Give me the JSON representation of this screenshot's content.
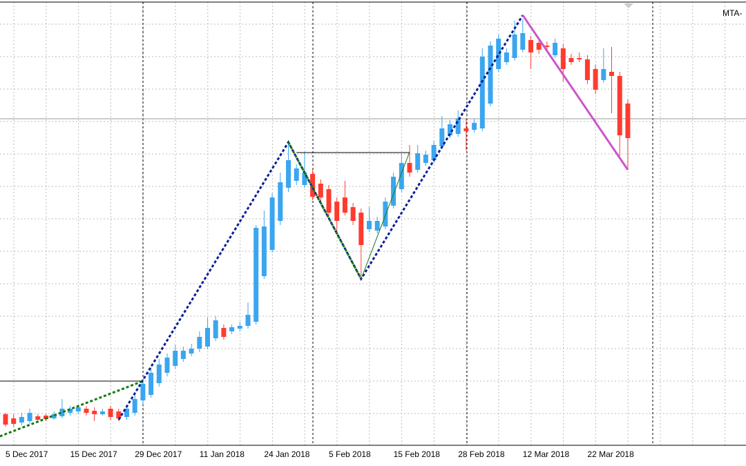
{
  "chart_data": {
    "type": "candlestick",
    "corner_label": "MTA-",
    "categories": [
      "5 Dec 2017",
      null,
      null,
      null,
      null,
      null,
      null,
      null,
      "15 Dec 2017",
      null,
      null,
      null,
      null,
      null,
      null,
      null,
      "29 Dec 2017",
      null,
      null,
      null,
      null,
      null,
      null,
      null,
      "11 Jan 2018",
      null,
      null,
      null,
      null,
      null,
      null,
      null,
      "24 Jan 2018",
      null,
      null,
      null,
      null,
      null,
      null,
      null,
      "5 Feb 2018",
      null,
      null,
      null,
      null,
      null,
      null,
      null,
      "15 Feb 2018",
      null,
      null,
      null,
      null,
      null,
      null,
      null,
      "28 Feb 2018",
      null,
      null,
      null,
      null,
      null,
      null,
      null,
      "12 Mar 2018",
      null,
      null,
      null,
      null,
      null,
      null,
      null,
      "22 Mar 2018",
      null,
      null,
      null,
      null,
      null
    ],
    "open": [
      45,
      39,
      33,
      35,
      42,
      43,
      39,
      42,
      47,
      49,
      53,
      50,
      45,
      53,
      49,
      41,
      47,
      65,
      73,
      90,
      105,
      115,
      125,
      133,
      140,
      143,
      155,
      170,
      165,
      169,
      173,
      179,
      245,
      283,
      325,
      373,
      383,
      377,
      393,
      379,
      371,
      353,
      359,
      345,
      337,
      313,
      311,
      317,
      347,
      371,
      409,
      399,
      409,
      413,
      433,
      449,
      451,
      459,
      457,
      459,
      495,
      545,
      555,
      561,
      573,
      587,
      583,
      579,
      565,
      575,
      561,
      561,
      559,
      545,
      529,
      541,
      535,
      495
    ],
    "high": [
      47,
      45,
      47,
      53,
      45,
      45,
      49,
      67,
      57,
      59,
      57,
      55,
      53,
      57,
      53,
      57,
      73,
      95,
      113,
      125,
      133,
      145,
      143,
      147,
      165,
      185,
      187,
      175,
      175,
      179,
      207,
      319,
      340,
      365,
      395,
      437,
      407,
      425,
      399,
      385,
      377,
      359,
      383,
      351,
      343,
      345,
      331,
      359,
      395,
      423,
      435,
      435,
      427,
      441,
      477,
      471,
      485,
      473,
      473,
      575,
      585,
      595,
      575,
      615,
      617,
      593,
      589,
      585,
      589,
      581,
      567,
      569,
      565,
      551,
      575,
      577,
      541,
      501
    ],
    "low": [
      27,
      27,
      29,
      31,
      33,
      35,
      37,
      39,
      43,
      45,
      43,
      35,
      43,
      37,
      35,
      37,
      43,
      59,
      69,
      85,
      100,
      111,
      121,
      129,
      135,
      139,
      151,
      153,
      161,
      165,
      169,
      175,
      241,
      279,
      319,
      367,
      377,
      373,
      355,
      353,
      331,
      305,
      333,
      319,
      245,
      309,
      307,
      313,
      343,
      367,
      389,
      395,
      405,
      409,
      429,
      445,
      447,
      427,
      453,
      455,
      491,
      541,
      551,
      557,
      569,
      545,
      567,
      573,
      561,
      527,
      551,
      555,
      523,
      509,
      525,
      481,
      419,
      399
    ],
    "close": [
      30,
      31,
      41,
      47,
      37,
      38,
      45,
      53,
      53,
      55,
      47,
      45,
      49,
      41,
      39,
      53,
      67,
      89,
      105,
      117,
      127,
      137,
      137,
      140,
      157,
      170,
      181,
      157,
      171,
      173,
      189,
      315,
      317,
      359,
      381,
      413,
      401,
      395,
      360,
      359,
      337,
      325,
      337,
      325,
      290,
      325,
      325,
      353,
      389,
      409,
      395,
      423,
      421,
      435,
      459,
      465,
      473,
      455,
      467,
      563,
      579,
      589,
      569,
      595,
      597,
      569,
      573,
      577,
      583,
      545,
      555,
      559,
      529,
      515,
      545,
      535,
      449,
      445
    ],
    "up_color": "#3aa6ef",
    "down_color": "#ff3b30",
    "ylim": [
      0,
      645
    ],
    "hline": 473,
    "lines": [
      {
        "color": "#0a1e96",
        "style": "dash",
        "x": [
          14,
          35,
          44,
          64
        ],
        "values": [
          37,
          439,
          241,
          623
        ]
      },
      {
        "color": "#127a12",
        "style": "dash",
        "x": [
          -0.7,
          17
        ],
        "values": [
          13,
          93
        ]
      },
      {
        "color": "#127a12",
        "style": "dash",
        "x": [
          35,
          44
        ],
        "values": [
          439,
          241
        ]
      },
      {
        "color": "#127a12",
        "style": "solid",
        "x": [
          44,
          50
        ],
        "values": [
          241,
          425
        ]
      },
      {
        "color": "#000000",
        "style": "solid",
        "x": [
          -0.7,
          17
        ],
        "values": [
          93,
          93
        ]
      },
      {
        "color": "#000000",
        "style": "solid",
        "x": [
          36,
          50
        ],
        "values": [
          424,
          424
        ]
      },
      {
        "color": "#cc55cc",
        "style": "thick",
        "x": [
          64,
          77
        ],
        "values": [
          623,
          399
        ]
      }
    ]
  }
}
